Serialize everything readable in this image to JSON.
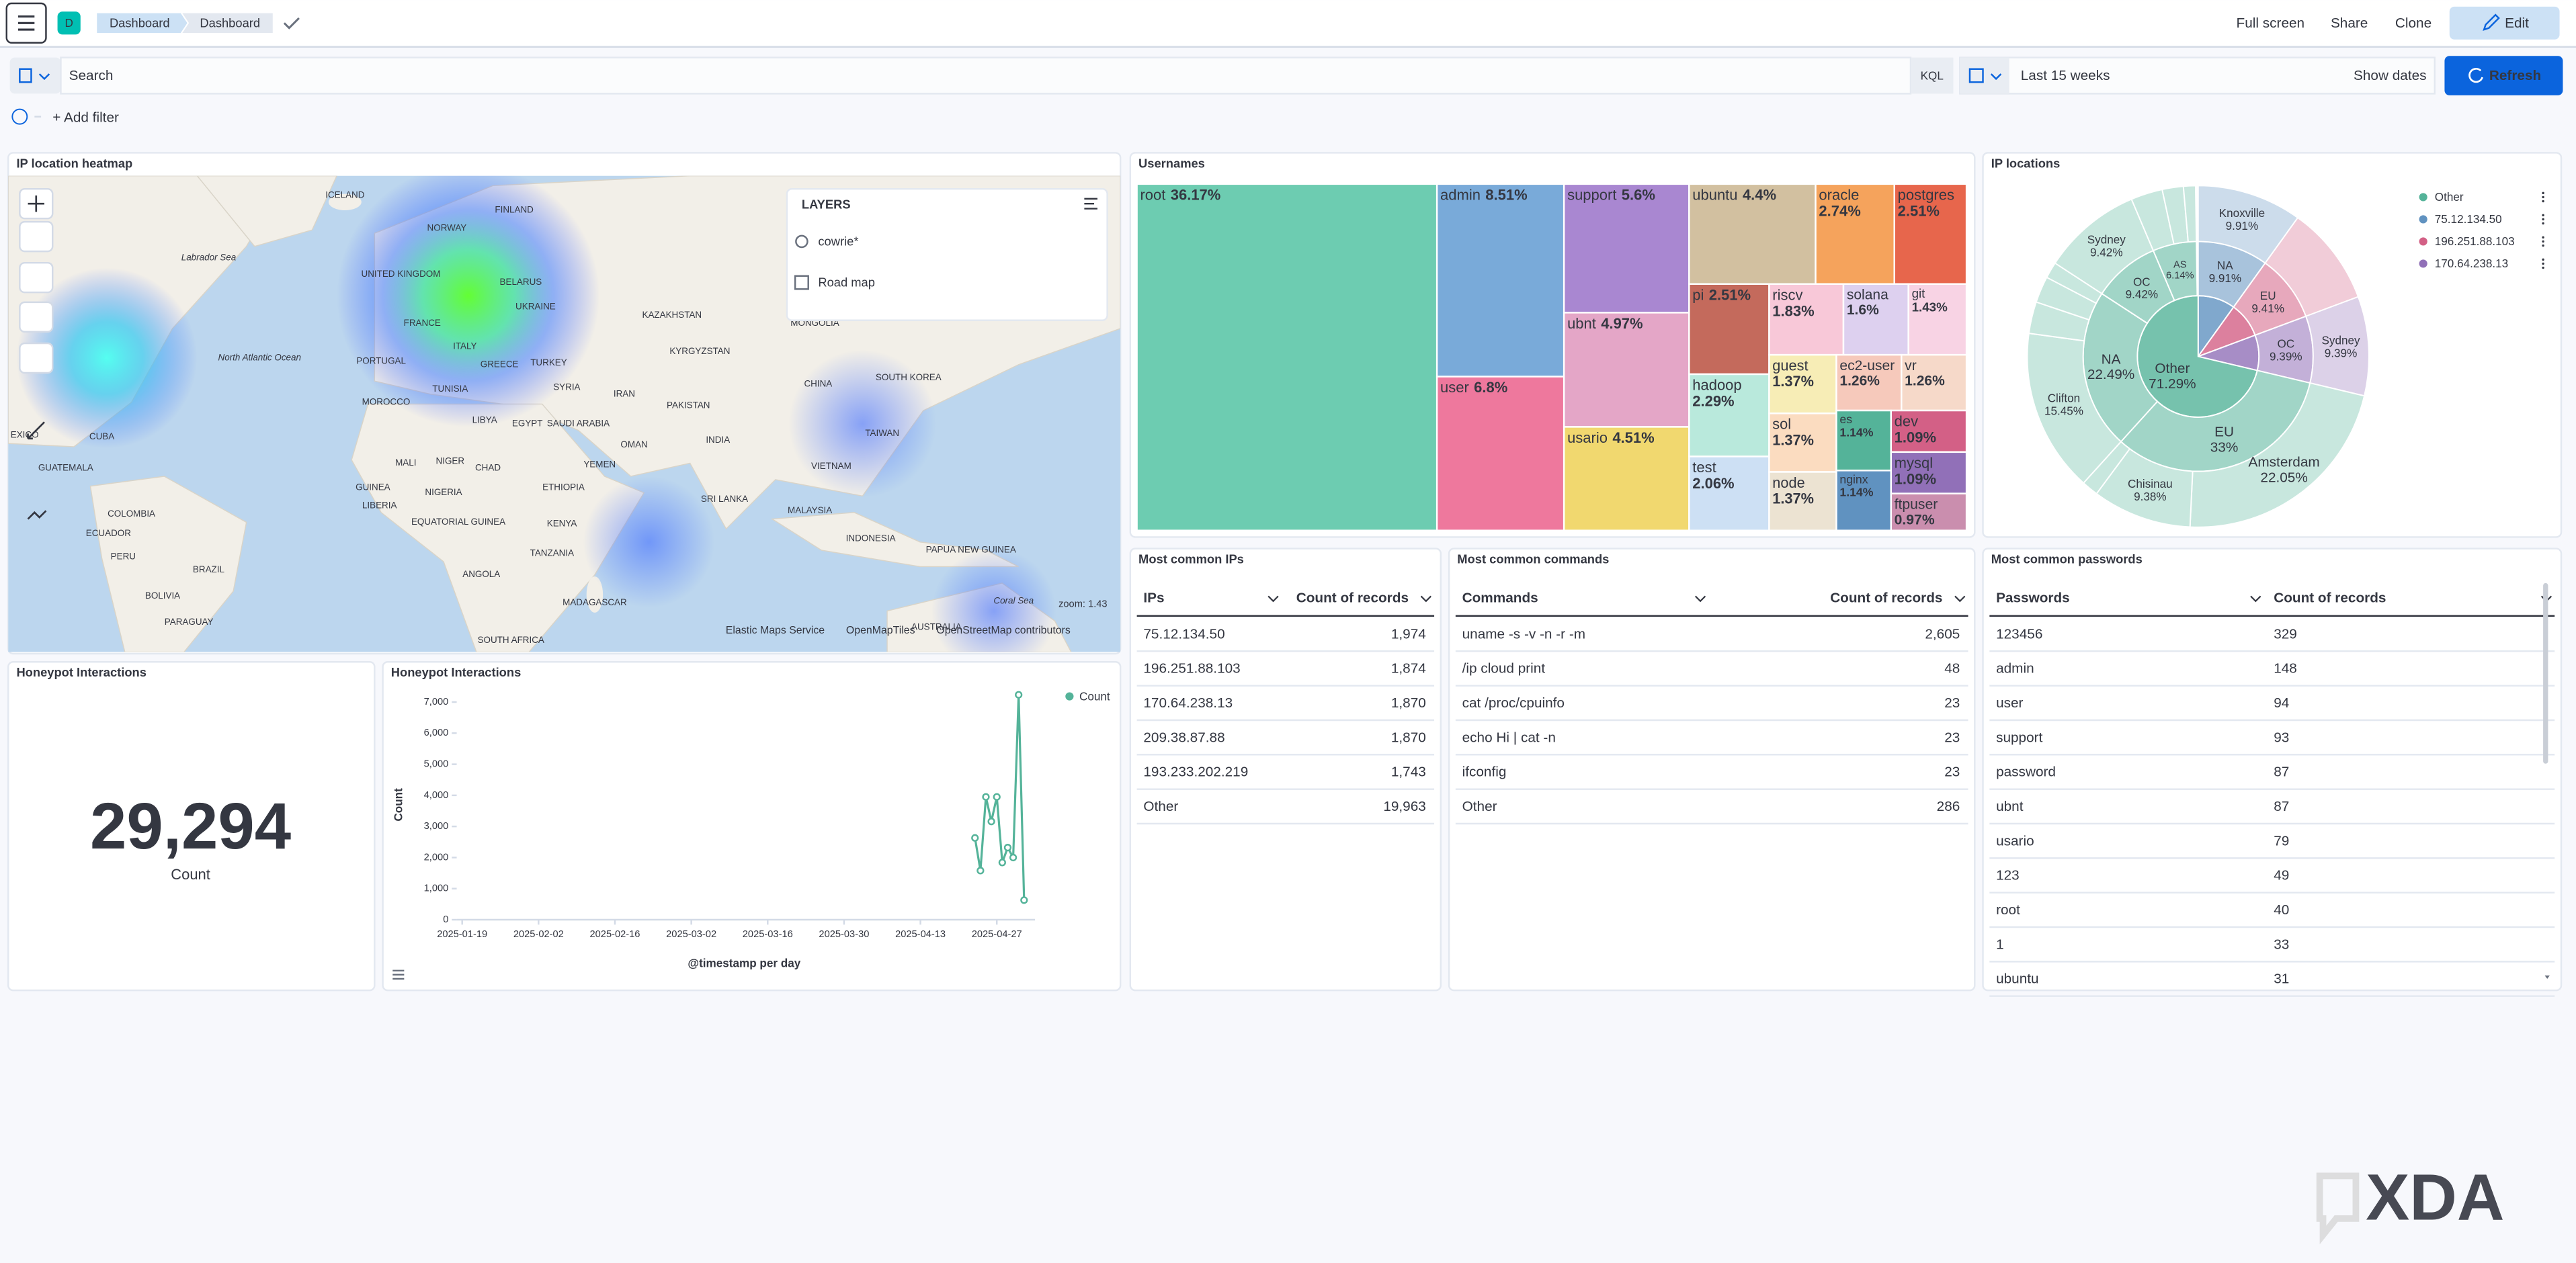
{
  "header": {
    "avatar": "D",
    "breadcrumbs": [
      "Dashboard",
      "Dashboard"
    ],
    "actions": [
      "Full screen",
      "Share",
      "Clone"
    ],
    "edit": "Edit"
  },
  "query": {
    "placeholder": "Search",
    "language": "KQL",
    "time_range": "Last 15 weeks",
    "show_dates": "Show dates",
    "refresh": "Refresh",
    "add_filter": "+ Add filter"
  },
  "map": {
    "title": "IP location heatmap",
    "layers_title": "LAYERS",
    "layers": [
      "cowrie*",
      "Road map"
    ],
    "zoom": "zoom: 1.43",
    "attribution": [
      "Elastic Maps Service",
      "OpenMapTiles",
      "OpenStreetMap contributors"
    ],
    "places": [
      "ICELAND",
      "FINLAND",
      "NORWAY",
      "UNITED KINGDOM",
      "BELARUS",
      "FRANCE",
      "UKRAINE",
      "ITALY",
      "PORTUGAL",
      "GREECE",
      "TURKEY",
      "KAZAKHSTAN",
      "MONGOLIA",
      "KYRGYZSTAN",
      "Labrador Sea",
      "North Atlantic Ocean",
      "TUNISIA",
      "SYRIA",
      "IRAN",
      "MOROCCO",
      "LIBYA",
      "EGYPT",
      "SAUDI ARABIA",
      "PAKISTAN",
      "CHINA",
      "SOUTH KOREA",
      "EXICO",
      "CUBA",
      "OMAN",
      "INDIA",
      "TAIWAN",
      "GUATEMALA",
      "MALI",
      "NIGER",
      "CHAD",
      "YEMEN",
      "GUINEA",
      "NIGERIA",
      "ETHIOPIA",
      "SRI LANKA",
      "VIETNAM",
      "LIBERIA",
      "EQUATORIAL GUINEA",
      "COLOMBIA",
      "KENYA",
      "MALAYSIA",
      "ECUADOR",
      "TANZANIA",
      "INDONESIA",
      "PAPUA NEW GUINEA",
      "PERU",
      "BRAZIL",
      "ANGOLA",
      "BOLIVIA",
      "MADAGASCAR",
      "PARAGUAY",
      "SOUTH AFRICA",
      "AUSTRALIA",
      "Coral Sea"
    ]
  },
  "chart_data": [
    {
      "type": "treemap",
      "title": "Usernames",
      "categories": [
        "root",
        "admin",
        "user",
        "support",
        "ubnt",
        "usario",
        "ubuntu",
        "oracle",
        "postgres",
        "pi",
        "hadoop",
        "test",
        "riscv",
        "solana",
        "git",
        "guest",
        "sol",
        "node",
        "ec2-user",
        "vr",
        "es",
        "nginx",
        "dev",
        "mysql",
        "ftpuser"
      ],
      "values": [
        36.17,
        8.51,
        6.8,
        5.6,
        4.97,
        4.51,
        4.4,
        2.74,
        2.51,
        2.51,
        2.29,
        2.06,
        1.83,
        1.6,
        1.43,
        1.37,
        1.37,
        1.37,
        1.26,
        1.26,
        1.14,
        1.14,
        1.09,
        1.09,
        0.97
      ],
      "value_labels": [
        "36.17%",
        "8.51%",
        "6.8%",
        "5.6%",
        "4.97%",
        "4.51%",
        "4.4%",
        "2.74%",
        "2.51%",
        "2.51%",
        "2.29%",
        "2.06%",
        "1.83%",
        "1.6%",
        "1.43%",
        "1.37%",
        "1.37%",
        "1.37%",
        "1.26%",
        "1.26%",
        "1.14%",
        "1.14%",
        "1.09%",
        "1.09%",
        "0.97%"
      ],
      "colors": [
        "#6dccb1",
        "#79aad9",
        "#ee789d",
        "#a987d1",
        "#e4a6c7",
        "#f1d86f",
        "#d2c0a0",
        "#f5a35c",
        "#e7664c",
        "#c46a5c",
        "#b9e9dc",
        "#cde0f4",
        "#f8c8d8",
        "#ddd0ef",
        "#f8d3e4",
        "#f7edb6",
        "#fbdcc0",
        "#ece3d2",
        "#f6c9bb",
        "#f6d9c9",
        "#54b399",
        "#6092c0",
        "#d36086",
        "#9170b8",
        "#ca8eae"
      ]
    },
    {
      "type": "sunburst",
      "title": "IP locations",
      "legend": "top-right",
      "data": [
        {
          "name": "75.12.134.50",
          "value": 9.91,
          "color": "#6092c0",
          "children": [
            {
              "name": "NA",
              "value": 9.91,
              "value_label": "9.91%",
              "children": [
                {
                  "name": "Knoxville",
                  "value": 9.91,
                  "value_label": "9.91%"
                }
              ]
            }
          ]
        },
        {
          "name": "196.251.88.103",
          "value": 9.41,
          "color": "#d36086",
          "children": [
            {
              "name": "EU",
              "value": 9.41,
              "value_label": "9.41%",
              "children": [
                {
                  "name": null,
                  "value": 9.41
                }
              ]
            }
          ]
        },
        {
          "name": "170.64.238.13",
          "value": 9.39,
          "color": "#9170b8",
          "children": [
            {
              "name": "OC",
              "value": 9.39,
              "value_label": "9.39%",
              "children": [
                {
                  "name": "Sydney",
                  "value": 9.39,
                  "value_label": "9.39%"
                }
              ]
            }
          ]
        },
        {
          "name": "Other",
          "value": 71.29,
          "value_label": "71.29%",
          "color": "#54b399",
          "children": [
            {
              "name": "EU",
              "value": 33,
              "value_label": "33%",
              "children": [
                {
                  "name": "Amsterdam",
                  "value": 22.05,
                  "value_label": "22.05%"
                },
                {
                  "name": "Chisinau",
                  "value": 9.38,
                  "value_label": "9.38%"
                },
                {
                  "name": null,
                  "value": 1.57
                }
              ]
            },
            {
              "name": "NA",
              "value": 22.49,
              "value_label": "22.49%",
              "children": [
                {
                  "name": "Clifton",
                  "value": 15.45,
                  "value_label": "15.45%"
                },
                {
                  "name": null,
                  "value": 3
                },
                {
                  "name": null,
                  "value": 2.5
                },
                {
                  "name": null,
                  "value": 1.54
                }
              ]
            },
            {
              "name": "OC",
              "value": 9.42,
              "value_label": "9.42%",
              "children": [
                {
                  "name": "Sydney",
                  "value": 9.42,
                  "value_label": "9.42%"
                }
              ]
            },
            {
              "name": "AS",
              "value": 6.14,
              "value_label": "6.14%",
              "children": [
                {
                  "name": null,
                  "value": 3
                },
                {
                  "name": null,
                  "value": 2
                },
                {
                  "name": null,
                  "value": 1.14
                }
              ]
            }
          ]
        }
      ]
    },
    {
      "type": "line",
      "title": "Honeypot Interactions",
      "x": [
        "2025-04-23",
        "2025-04-24",
        "2025-04-25",
        "2025-04-26",
        "2025-04-27",
        "2025-04-28",
        "2025-04-29",
        "2025-04-30",
        "2025-05-01",
        "2025-05-02"
      ],
      "series": [
        {
          "name": "Count",
          "color": "#54b399",
          "values": [
            2630,
            1580,
            3950,
            3160,
            3950,
            1840,
            2320,
            2000,
            7234,
            630
          ]
        }
      ],
      "xlim": [
        "2025-01-18",
        "2025-05-04"
      ],
      "xticks": [
        "2025-01-19",
        "2025-02-02",
        "2025-02-16",
        "2025-03-02",
        "2025-03-16",
        "2025-03-30",
        "2025-04-13",
        "2025-04-27"
      ],
      "ylim": [
        0,
        7500
      ],
      "yticks": [
        0,
        {
          "value": 1000,
          "label": "1,000"
        },
        {
          "value": 2000,
          "label": "2,000"
        },
        {
          "value": 3000,
          "label": "3,000"
        },
        {
          "value": 4000,
          "label": "4,000"
        },
        {
          "value": 5000,
          "label": "5,000"
        },
        {
          "value": 6000,
          "label": "6,000"
        },
        {
          "value": 7000,
          "label": "7,000"
        }
      ],
      "xlabel": "@timestamp per day",
      "ylabel": "Count",
      "legend": "top-right"
    }
  ],
  "metric": {
    "title": "Honeypot Interactions",
    "value": "29,294",
    "label": "Count"
  },
  "ips": {
    "title": "Most common IPs",
    "columns": [
      "IPs",
      "Count of records"
    ],
    "rows": [
      [
        "75.12.134.50",
        "1,974"
      ],
      [
        "196.251.88.103",
        "1,874"
      ],
      [
        "170.64.238.13",
        "1,870"
      ],
      [
        "209.38.87.88",
        "1,870"
      ],
      [
        "193.233.202.219",
        "1,743"
      ],
      [
        "Other",
        "19,963"
      ]
    ]
  },
  "commands": {
    "title": "Most common commands",
    "columns": [
      "Commands",
      "Count of records"
    ],
    "rows": [
      [
        "uname -s -v -n -r -m",
        "2,605"
      ],
      [
        "/ip cloud print",
        "48"
      ],
      [
        "cat /proc/cpuinfo",
        "23"
      ],
      [
        "echo Hi | cat -n",
        "23"
      ],
      [
        "ifconfig",
        "23"
      ],
      [
        "Other",
        "286"
      ]
    ]
  },
  "passwords": {
    "title": "Most common passwords",
    "columns": [
      "Passwords",
      "Count of records"
    ],
    "rows": [
      [
        "123456",
        "329"
      ],
      [
        "admin",
        "148"
      ],
      [
        "user",
        "94"
      ],
      [
        "support",
        "93"
      ],
      [
        "password",
        "87"
      ],
      [
        "ubnt",
        "87"
      ],
      [
        "usario",
        "79"
      ],
      [
        "123",
        "49"
      ],
      [
        "root",
        "40"
      ],
      [
        "1",
        "33"
      ],
      [
        "ubuntu",
        "31"
      ]
    ]
  },
  "watermark": "XDA"
}
